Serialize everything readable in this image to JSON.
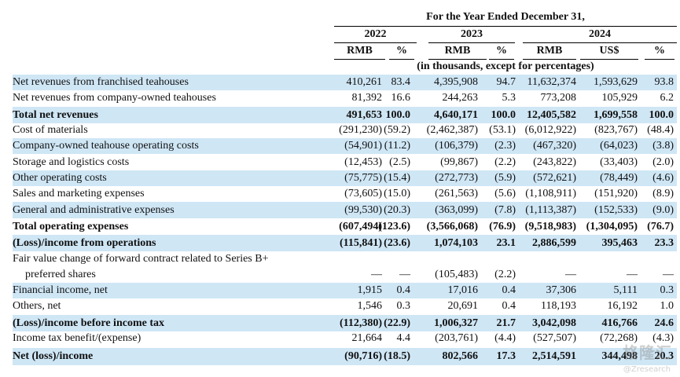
{
  "header": {
    "period": "For the Year Ended December 31,",
    "years": [
      "2022",
      "2023",
      "2024"
    ],
    "units": [
      "RMB",
      "%",
      "RMB",
      "%",
      "RMB",
      "US$",
      "%"
    ],
    "note": "(in thousands, except for percentages)"
  },
  "rows": [
    {
      "label": "Net revenues from franchised teahouses",
      "values": [
        "410,261",
        "83.4",
        "4,395,908",
        "94.7",
        "11,632,374",
        "1,593,629",
        "93.8"
      ],
      "bold": false,
      "shade": true
    },
    {
      "label": "Net revenues from company-owned teahouses",
      "values": [
        "81,392",
        "16.6",
        "244,263",
        "5.3",
        "773,208",
        "105,929",
        "6.2"
      ],
      "bold": false,
      "shade": false
    },
    {
      "label": "Total net revenues",
      "values": [
        "491,653",
        "100.0",
        "4,640,171",
        "100.0",
        "12,405,582",
        "1,699,558",
        "100.0"
      ],
      "bold": true,
      "shade": true
    },
    {
      "label": "Cost of materials",
      "values": [
        "(291,230)",
        "(59.2)",
        "(2,462,387)",
        "(53.1)",
        "(6,012,922)",
        "(823,767)",
        "(48.4)"
      ],
      "bold": false,
      "shade": false
    },
    {
      "label": "Company-owned teahouse operating costs",
      "values": [
        "(54,901)",
        "(11.2)",
        "(106,379)",
        "(2.3)",
        "(467,320)",
        "(64,023)",
        "(3.8)"
      ],
      "bold": false,
      "shade": true
    },
    {
      "label": "Storage and logistics costs",
      "values": [
        "(12,453)",
        "(2.5)",
        "(99,867)",
        "(2.2)",
        "(243,822)",
        "(33,403)",
        "(2.0)"
      ],
      "bold": false,
      "shade": false
    },
    {
      "label": "Other operating costs",
      "values": [
        "(75,775)",
        "(15.4)",
        "(272,773)",
        "(5.9)",
        "(572,621)",
        "(78,449)",
        "(4.6)"
      ],
      "bold": false,
      "shade": true
    },
    {
      "label": "Sales and marketing expenses",
      "values": [
        "(73,605)",
        "(15.0)",
        "(261,563)",
        "(5.6)",
        "(1,108,911)",
        "(151,920)",
        "(8.9)"
      ],
      "bold": false,
      "shade": false
    },
    {
      "label": "General and administrative expenses",
      "values": [
        "(99,530)",
        "(20.3)",
        "(363,099)",
        "(7.8)",
        "(1,113,387)",
        "(152,533)",
        "(9.0)"
      ],
      "bold": false,
      "shade": true
    },
    {
      "label": "Total operating expenses",
      "values": [
        "(607,494)",
        "(123.6)",
        "(3,566,068)",
        "(76.9)",
        "(9,518,983)",
        "(1,304,095)",
        "(76.7)"
      ],
      "bold": true,
      "shade": false
    },
    {
      "label": "(Loss)/income from operations",
      "values": [
        "(115,841)",
        "(23.6)",
        "1,074,103",
        "23.1",
        "2,886,599",
        "395,463",
        "23.3"
      ],
      "bold": true,
      "shade": true
    },
    {
      "label": "Fair value change of forward contract related to Series B+",
      "values": [
        "",
        "",
        "",
        "",
        "",
        "",
        ""
      ],
      "bold": false,
      "shade": false
    },
    {
      "label": "preferred shares",
      "values": [
        "—",
        "—",
        "(105,483)",
        "(2.2)",
        "—",
        "—",
        "—"
      ],
      "bold": false,
      "shade": false,
      "indent": true
    },
    {
      "label": "Financial income, net",
      "values": [
        "1,915",
        "0.4",
        "17,016",
        "0.4",
        "37,306",
        "5,111",
        "0.3"
      ],
      "bold": false,
      "shade": true
    },
    {
      "label": "Others, net",
      "values": [
        "1,546",
        "0.3",
        "20,691",
        "0.4",
        "118,193",
        "16,192",
        "1.0"
      ],
      "bold": false,
      "shade": false
    },
    {
      "label": "(Loss)/income before income tax",
      "values": [
        "(112,380)",
        "(22.9)",
        "1,006,327",
        "21.7",
        "3,042,098",
        "416,766",
        "24.6"
      ],
      "bold": true,
      "shade": true
    },
    {
      "label": "Income tax benefit/(expense)",
      "values": [
        "21,664",
        "4.4",
        "(203,761)",
        "(4.4)",
        "(527,507)",
        "(72,268)",
        "(4.3)"
      ],
      "bold": false,
      "shade": false
    },
    {
      "label": "Net (loss)/income",
      "values": [
        "(90,716)",
        "(18.5)",
        "802,566",
        "17.3",
        "2,514,591",
        "344,498",
        "20.3"
      ],
      "bold": true,
      "shade": true
    }
  ],
  "watermark": {
    "text": "格隆汇",
    "sub": "@Zresearch"
  }
}
